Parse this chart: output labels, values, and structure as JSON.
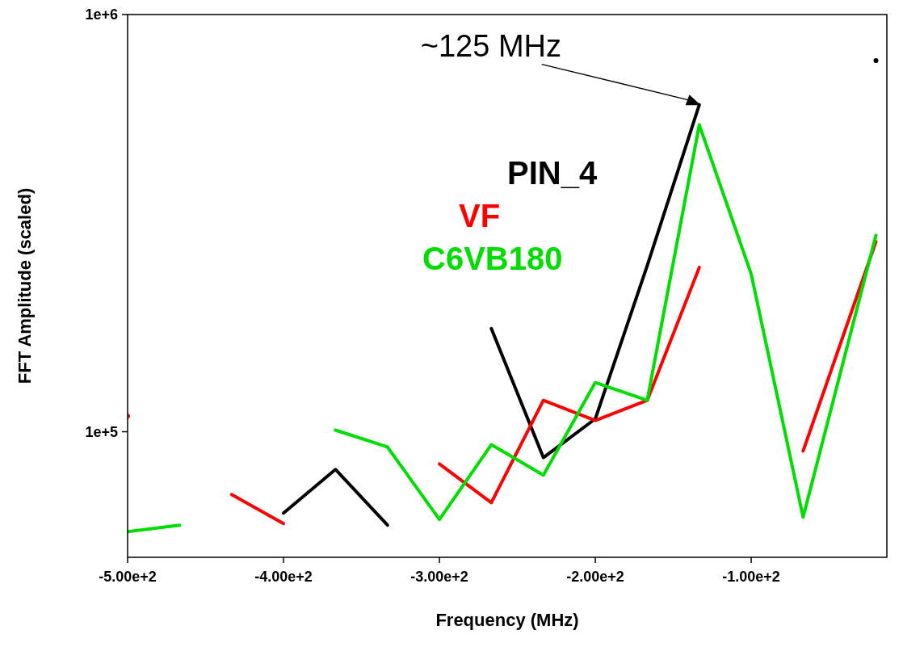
{
  "chart_data": {
    "type": "line",
    "xlabel": "Frequency (MHz)",
    "ylabel": "FFT Amplitude (scaled)",
    "x": [
      -500,
      -466.7,
      -433.3,
      -400,
      -366.7,
      -333.3,
      -300,
      -266.7,
      -233.3,
      -200,
      -166.7,
      -133.3,
      -100,
      -66.7,
      -20
    ],
    "series": [
      {
        "name": "PIN_4",
        "color": "#000000",
        "values": [
          null,
          null,
          null,
          63800,
          81200,
          59700,
          null,
          176700,
          86700,
          107400,
          250000,
          608000,
          null,
          null,
          776000
        ]
      },
      {
        "name": "VF",
        "color": "#ff0000",
        "values": [
          109000,
          null,
          70700,
          60200,
          null,
          null,
          83700,
          67600,
          118900,
          106400,
          118900,
          247600,
          null,
          89900,
          285700
        ]
      },
      {
        "name": "C6VB180",
        "color": "#00dd00",
        "values": [
          57600,
          59700,
          null,
          null,
          100900,
          91900,
          61600,
          93100,
          78700,
          131200,
          118900,
          544000,
          238700,
          62400,
          295700
        ]
      }
    ],
    "xlim": [
      -500,
      -13
    ],
    "xticks": [
      {
        "value": -500,
        "label": "-5.00e+2"
      },
      {
        "value": -400,
        "label": "-4.00e+2"
      },
      {
        "value": -300,
        "label": "-3.00e+2"
      },
      {
        "value": -200,
        "label": "-2.00e+2"
      },
      {
        "value": -100,
        "label": "-1.00e+2"
      }
    ],
    "ylim": [
      50000,
      1000000
    ],
    "yticks": [
      {
        "value": 100000,
        "label": "1e+5"
      },
      {
        "value": 1000000,
        "label": "1e+6"
      }
    ],
    "log": "y",
    "grid": false,
    "legend": "top",
    "line_style": "solid",
    "annotations": [
      "~125 MHz"
    ]
  }
}
